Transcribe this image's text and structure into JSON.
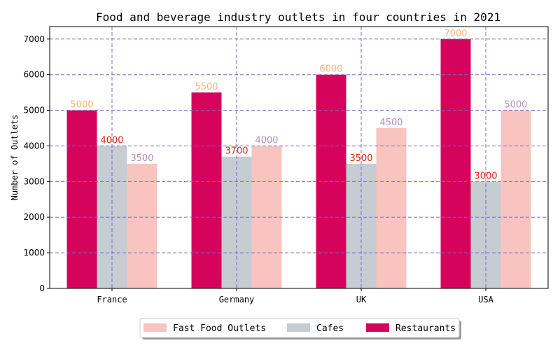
{
  "chart_data": {
    "type": "bar",
    "title": "Food and beverage industry outlets in four countries in 2021",
    "xlabel": "",
    "ylabel": "Number of Outlets",
    "categories": [
      "France",
      "Germany",
      "UK",
      "USA"
    ],
    "ylim": [
      0,
      7350
    ],
    "yticks": [
      0,
      1000,
      2000,
      3000,
      4000,
      5000,
      6000,
      7000
    ],
    "grid": true,
    "legend_position": "bottom-center",
    "series": [
      {
        "name": "Restaurants",
        "values": [
          5000,
          5500,
          6000,
          7000
        ],
        "color": "#d6035c",
        "label_color": "#f5b27f"
      },
      {
        "name": "Cafes",
        "values": [
          4000,
          3700,
          3500,
          3000
        ],
        "color": "#c5cdd2",
        "label_color": "#e0230f"
      },
      {
        "name": "Fast Food Outlets",
        "values": [
          3500,
          4000,
          4500,
          5000
        ],
        "color": "#f9c4c0",
        "label_color": "#b28ec6"
      }
    ],
    "legend_order": [
      "Fast Food Outlets",
      "Cafes",
      "Restaurants"
    ],
    "grid_color": "#7b68c0"
  }
}
